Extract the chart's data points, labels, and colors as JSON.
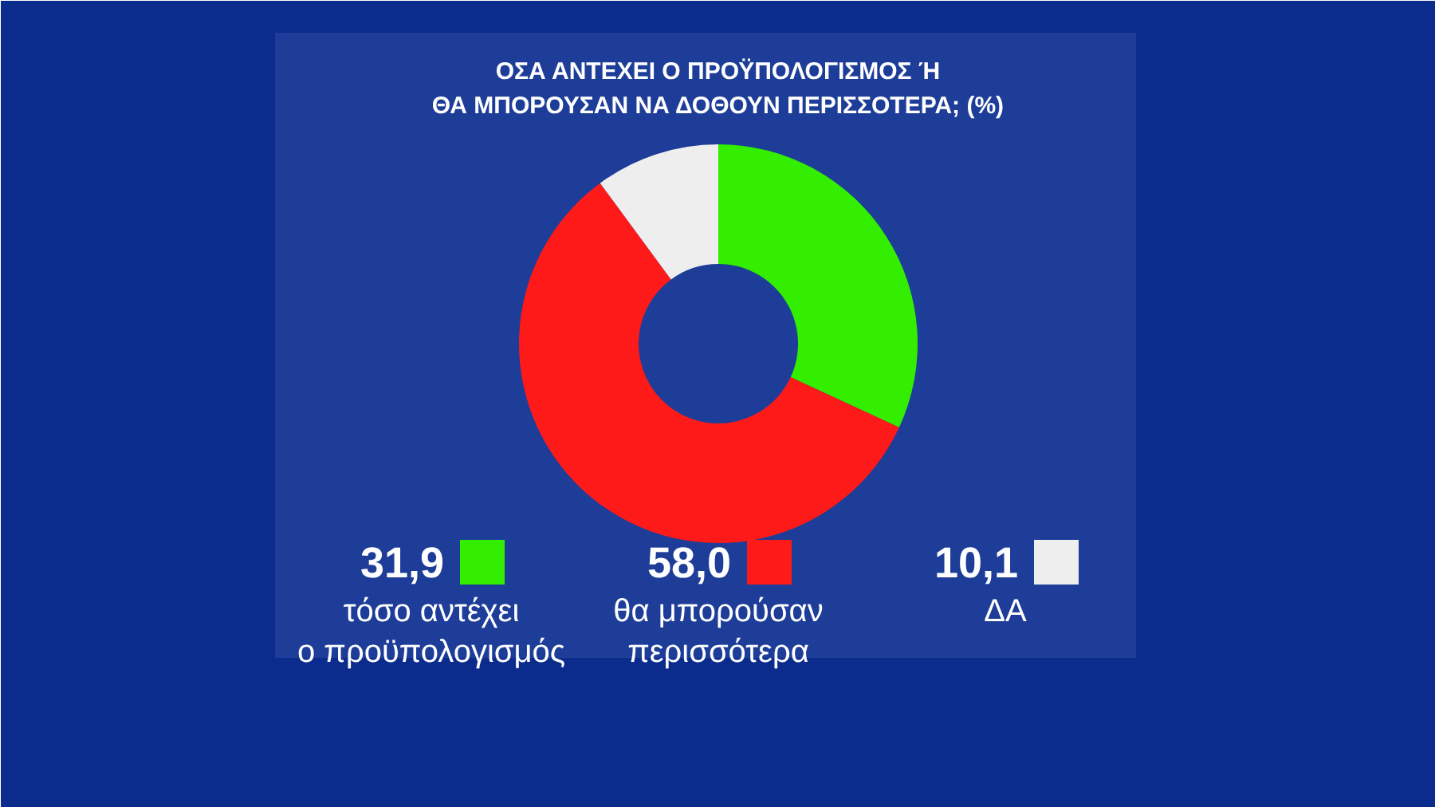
{
  "chart_data": {
    "type": "donut",
    "title": "ΟΣΑ ΑΝΤΕΧΕΙ Ο ΠΡΟΫΠΟΛΟΓΙΣΜΟΣ Ή\nΘΑ ΜΠΟΡΟΥΣΑΝ ΝΑ ΔΟΘΟΥΝ ΠΕΡΙΣΣΟΤΕΡΑ; (%)",
    "categories": [
      "τόσο αντέχει\nο προϋπολογισμός",
      "θα μπορούσαν\nπερισσότερα",
      "ΔΑ"
    ],
    "values": [
      31.9,
      58.0,
      10.1
    ],
    "colors": [
      "#33ee00",
      "#ff1a1a",
      "#eeeeee"
    ],
    "value_labels": [
      "31,9",
      "58,0",
      "10,1"
    ],
    "legend": "bottom"
  }
}
